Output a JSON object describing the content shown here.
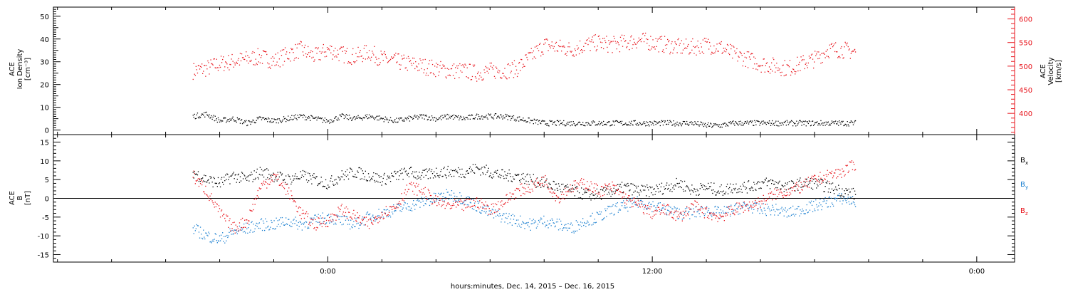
{
  "chart_data": [
    {
      "panel": "top",
      "type": "scatter",
      "ylabel_left": [
        "ACE",
        "Ion Density",
        "[cm⁻³]"
      ],
      "ylabel_right": [
        "ACE",
        "Velocity",
        "[km/s]"
      ],
      "ylim_left": [
        -2,
        54
      ],
      "yticks_left": [
        0,
        10,
        20,
        30,
        40,
        50
      ],
      "ylim_right": [
        355,
        625
      ],
      "yticks_right": [
        400,
        450,
        500,
        550,
        600
      ],
      "colors": {
        "density": "#000000",
        "velocity": "#e8141c"
      },
      "series": [
        {
          "key": "density",
          "axis": "left",
          "x": [
            -5.0,
            -4.5,
            -4.0,
            -3.5,
            -3.0,
            -2.5,
            -2.0,
            -1.5,
            -1.0,
            -0.5,
            0.0,
            0.5,
            1.0,
            1.5,
            2.0,
            2.5,
            3.0,
            3.5,
            4.0,
            4.5,
            5.0,
            5.5,
            6.0,
            6.5,
            7.0,
            7.5,
            8.0,
            8.5,
            9.0,
            9.5,
            10.0,
            10.5,
            11.0,
            11.5,
            12.0,
            12.5,
            13.0,
            13.5,
            14.0,
            14.5,
            15.0,
            15.5,
            16.0,
            16.5,
            17.0,
            17.5,
            18.0,
            18.5,
            19.0,
            19.5
          ],
          "y": [
            6,
            7,
            4,
            5,
            3,
            5,
            4,
            5,
            6,
            5,
            4,
            6,
            5,
            6,
            5,
            4,
            5,
            6,
            5,
            6,
            5,
            6,
            6,
            6,
            5,
            4,
            3,
            3,
            3,
            3,
            3,
            3,
            3,
            3,
            3,
            3,
            3,
            3,
            2,
            2,
            3,
            3,
            3,
            3,
            3,
            3,
            3,
            3,
            3,
            3
          ]
        },
        {
          "key": "velocity",
          "axis": "right",
          "x": [
            -5.0,
            -4.5,
            -4.0,
            -3.5,
            -3.0,
            -2.5,
            -2.0,
            -1.5,
            -1.0,
            -0.5,
            0.0,
            0.5,
            1.0,
            1.5,
            2.0,
            2.5,
            3.0,
            3.5,
            4.0,
            4.5,
            5.0,
            5.5,
            6.0,
            6.5,
            7.0,
            7.5,
            8.0,
            8.5,
            9.0,
            9.5,
            10.0,
            10.5,
            11.0,
            11.5,
            12.0,
            12.5,
            13.0,
            13.5,
            14.0,
            14.5,
            15.0,
            15.5,
            16.0,
            16.5,
            17.0,
            17.5,
            18.0,
            18.5,
            19.0,
            19.5
          ],
          "y": [
            490,
            495,
            505,
            510,
            515,
            520,
            510,
            525,
            535,
            520,
            535,
            525,
            520,
            530,
            515,
            510,
            505,
            500,
            495,
            490,
            490,
            485,
            490,
            490,
            495,
            520,
            545,
            540,
            535,
            545,
            550,
            545,
            550,
            555,
            550,
            545,
            540,
            540,
            545,
            540,
            525,
            515,
            505,
            500,
            495,
            505,
            515,
            535,
            535,
            530
          ]
        }
      ]
    },
    {
      "panel": "bottom",
      "type": "scatter",
      "ylabel_left": [
        "ACE",
        "B",
        "[nT]"
      ],
      "ylim": [
        -17,
        17
      ],
      "yticks": [
        -15,
        -10,
        -5,
        0,
        5,
        10,
        15
      ],
      "zero_line": true,
      "legend": [
        {
          "label": "B",
          "sub": "x",
          "color": "#000000"
        },
        {
          "label": "B",
          "sub": "y",
          "color": "#1a7fd0"
        },
        {
          "label": "B",
          "sub": "z",
          "color": "#e8141c"
        }
      ],
      "series": [
        {
          "key": "Bx",
          "x": [
            -5.0,
            -4.5,
            -4.0,
            -3.5,
            -3.0,
            -2.5,
            -2.0,
            -1.5,
            -1.0,
            -0.5,
            0.0,
            0.5,
            1.0,
            1.5,
            2.0,
            2.5,
            3.0,
            3.5,
            4.0,
            4.5,
            5.0,
            5.5,
            6.0,
            6.5,
            7.0,
            7.5,
            8.0,
            8.5,
            9.0,
            9.5,
            10.0,
            10.5,
            11.0,
            11.5,
            12.0,
            12.5,
            13.0,
            13.5,
            14.0,
            14.5,
            15.0,
            15.5,
            16.0,
            16.5,
            17.0,
            17.5,
            18.0,
            18.5,
            19.0,
            19.5
          ],
          "y": [
            7,
            5,
            4,
            6,
            5,
            7,
            6,
            5,
            6,
            5,
            4,
            6,
            7,
            6,
            5,
            6,
            7,
            6,
            7,
            7,
            7,
            8,
            7,
            6,
            6,
            5,
            4,
            3,
            2,
            1,
            1,
            2,
            3,
            2,
            2,
            3,
            4,
            2,
            3,
            2,
            3,
            3,
            4,
            4,
            3,
            4,
            4,
            3,
            2,
            1
          ]
        },
        {
          "key": "By",
          "x": [
            -5.0,
            -4.5,
            -4.0,
            -3.5,
            -3.0,
            -2.5,
            -2.0,
            -1.5,
            -1.0,
            -0.5,
            0.0,
            0.5,
            1.0,
            1.5,
            2.0,
            2.5,
            3.0,
            3.5,
            4.0,
            4.5,
            5.0,
            5.5,
            6.0,
            6.5,
            7.0,
            7.5,
            8.0,
            8.5,
            9.0,
            9.5,
            10.0,
            10.5,
            11.0,
            11.5,
            12.0,
            12.5,
            13.0,
            13.5,
            14.0,
            14.5,
            15.0,
            15.5,
            16.0,
            16.5,
            17.0,
            17.5,
            18.0,
            18.5,
            19.0,
            19.5
          ],
          "y": [
            -8,
            -10,
            -11,
            -9,
            -8,
            -7,
            -7,
            -6,
            -7,
            -6,
            -5,
            -6,
            -7,
            -5,
            -4,
            -3,
            -2,
            -1,
            0,
            1,
            0,
            -2,
            -4,
            -5,
            -6,
            -7,
            -6,
            -7,
            -8,
            -6,
            -5,
            -3,
            -2,
            -1,
            -2,
            -3,
            -4,
            -4,
            -3,
            -4,
            -3,
            -2,
            -3,
            -3,
            -4,
            -3,
            -2,
            -1,
            0,
            -1
          ]
        },
        {
          "key": "Bz",
          "x": [
            -5.0,
            -4.5,
            -4.0,
            -3.5,
            -3.0,
            -2.5,
            -2.0,
            -1.5,
            -1.0,
            -0.5,
            0.0,
            0.5,
            1.0,
            1.5,
            2.0,
            2.5,
            3.0,
            3.5,
            4.0,
            4.5,
            5.0,
            5.5,
            6.0,
            6.5,
            7.0,
            7.5,
            8.0,
            8.5,
            9.0,
            9.5,
            10.0,
            10.5,
            11.0,
            11.5,
            12.0,
            12.5,
            13.0,
            13.5,
            14.0,
            14.5,
            15.0,
            15.5,
            16.0,
            16.5,
            17.0,
            17.5,
            18.0,
            18.5,
            19.0,
            19.5
          ],
          "y": [
            6,
            2,
            -4,
            -8,
            -6,
            3,
            6,
            2,
            -4,
            -7,
            -6,
            -3,
            -5,
            -7,
            -4,
            -2,
            3,
            2,
            -1,
            -2,
            -2,
            -1,
            -3,
            -1,
            2,
            3,
            5,
            0,
            3,
            4,
            2,
            3,
            0,
            -2,
            -4,
            -3,
            -5,
            -2,
            -4,
            -5,
            -3,
            -2,
            -1,
            1,
            2,
            3,
            5,
            6,
            7,
            9
          ]
        }
      ]
    }
  ],
  "xaxis": {
    "xlim": [
      -10.15,
      25.4
    ],
    "major_ticks": [
      {
        "x": 0,
        "label": "0:00"
      },
      {
        "x": 12,
        "label": "12:00"
      },
      {
        "x": 24,
        "label": "0:00"
      }
    ],
    "minor_step": 2,
    "xlabel": "hours:minutes, Dec. 14, 2015 – Dec. 16, 2015"
  }
}
